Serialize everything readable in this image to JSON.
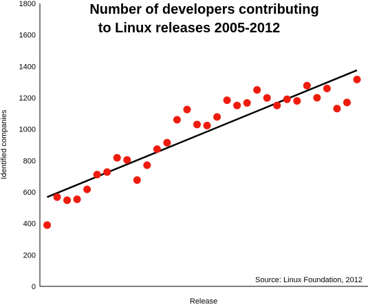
{
  "chart_data": {
    "type": "scatter",
    "title_lines": [
      "Number of developers contributing",
      "to Linux releases 2005-2012"
    ],
    "xlabel": "Release",
    "ylabel": "Identified companies",
    "source": "Source: Linux Foundation, 2012",
    "ylim": [
      0,
      1800
    ],
    "yticks": [
      0,
      200,
      400,
      600,
      800,
      1000,
      1200,
      1400,
      1600,
      1800
    ],
    "grid": false,
    "point_color": "#ee1c0d",
    "trend_color": "#000000",
    "series": [
      {
        "values": [
          390,
          568,
          548,
          554,
          617,
          711,
          727,
          818,
          804,
          676,
          771,
          873,
          914,
          1060,
          1125,
          1030,
          1023,
          1078,
          1184,
          1151,
          1167,
          1250,
          1199,
          1151,
          1190,
          1180,
          1277,
          1200,
          1259,
          1131,
          1170,
          1316
        ]
      }
    ],
    "trendline": {
      "start": 568,
      "end": 1375
    }
  }
}
